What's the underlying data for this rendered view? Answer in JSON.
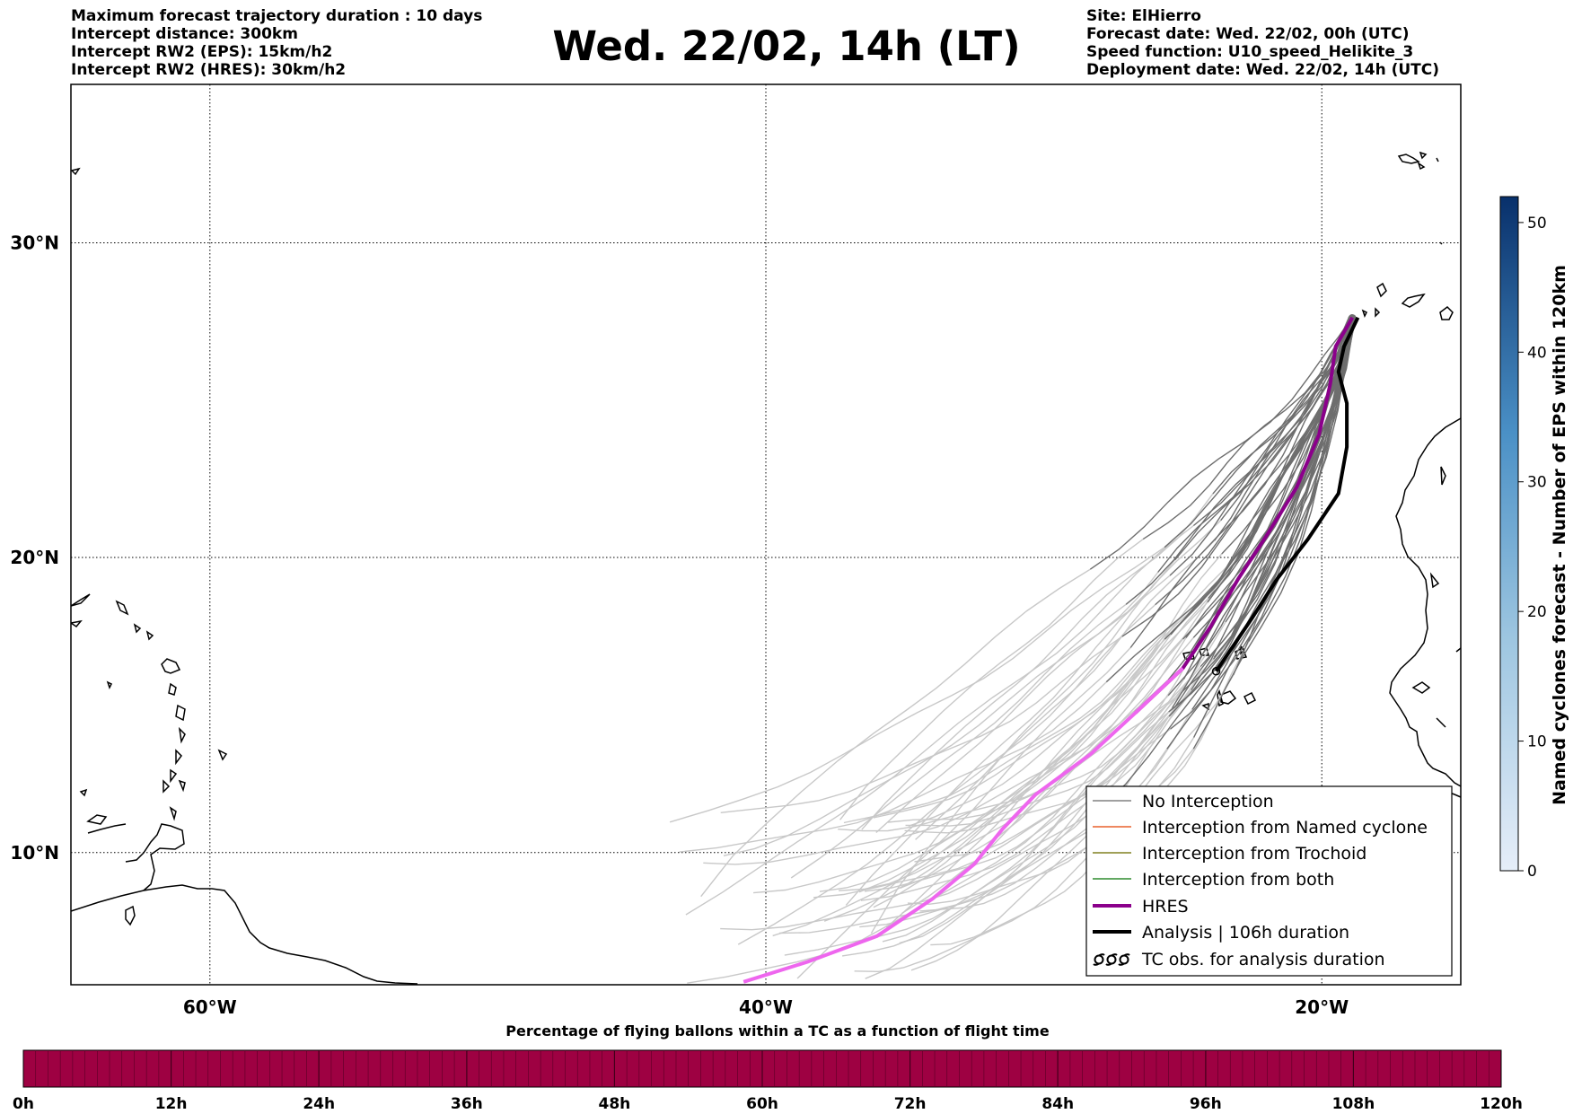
{
  "title": "Wed. 22/02, 14h (LT)",
  "header_left": [
    "Maximum forecast trajectory duration : 10 days",
    "Intercept distance: 300km",
    "Intercept RW2 (EPS):  15km/h2",
    "Intercept RW2 (HRES): 30km/h2"
  ],
  "header_right": [
    "Site: ElHierro",
    "Forecast date: Wed. 22/02, 00h (UTC)",
    "Speed function: U10_speed_Helikite_3",
    "Deployment date: Wed. 22/02, 14h (UTC)"
  ],
  "map": {
    "lon_ticks": [
      {
        "value": -60,
        "label": "60°W"
      },
      {
        "value": -40,
        "label": "40°W"
      },
      {
        "value": -20,
        "label": "20°W"
      }
    ],
    "lat_ticks": [
      {
        "value": 10,
        "label": "10°N"
      },
      {
        "value": 20,
        "label": "20°N"
      },
      {
        "value": 30,
        "label": "30°N"
      }
    ],
    "lon_range": [
      -65,
      -15
    ],
    "lat_range": [
      5.4,
      34.7
    ],
    "grid": "dotted"
  },
  "legend": [
    {
      "label": "No Interception",
      "color": "#808080",
      "style": "thin-line"
    },
    {
      "label": "Interception from Named cyclone",
      "color": "#e8602c",
      "style": "thin-line"
    },
    {
      "label": "Interception from Trochoid",
      "color": "#808020",
      "style": "thin-line"
    },
    {
      "label": "Interception from both",
      "color": "#2e8b2e",
      "style": "thin-line"
    },
    {
      "label": "HRES",
      "color": "#8b008b",
      "style": "thick-line"
    },
    {
      "label": "Analysis | 106h duration",
      "color": "#000000",
      "style": "thick-line"
    },
    {
      "label": "TC obs. for analysis duration",
      "color": "#000000",
      "style": "cyclone-symbols"
    }
  ],
  "colorbar_right": {
    "label": "Named cyclones forecast - Number of EPS within 120km",
    "ticks": [
      "0",
      "10",
      "20",
      "30",
      "40",
      "50"
    ],
    "min": 0,
    "max": 52,
    "color_low": "#e6eef9",
    "color_high": "#08306b"
  },
  "colorbar_bottom": {
    "label": "Percentage of flying ballons within a TC as a function of flight time",
    "ticks": [
      "0h",
      "12h",
      "24h",
      "36h",
      "48h",
      "60h",
      "72h",
      "84h",
      "96h",
      "108h",
      "120h"
    ],
    "fill_color": "#9e0142"
  },
  "chart_data": {
    "type": "trajectory-map",
    "site": "ElHierro",
    "origin": {
      "lon": -18.9,
      "lat": 27.7
    },
    "hres_track": [
      [
        -18.9,
        27.7
      ],
      [
        -19.5,
        26.8
      ],
      [
        -19.7,
        25.6
      ],
      [
        -20.1,
        24.0
      ],
      [
        -20.9,
        22.3
      ],
      [
        -22.0,
        20.7
      ],
      [
        -23.0,
        19.3
      ],
      [
        -24.0,
        17.7
      ],
      [
        -25.0,
        16.3
      ],
      [
        -26.7,
        14.8
      ],
      [
        -28.3,
        13.4
      ],
      [
        -30.3,
        12.0
      ],
      [
        -31.5,
        10.8
      ],
      [
        -32.5,
        9.6
      ],
      [
        -34.0,
        8.4
      ],
      [
        -36.0,
        7.1
      ],
      [
        -38.5,
        6.2
      ],
      [
        -40.8,
        5.5
      ]
    ],
    "analysis_track": [
      [
        -18.7,
        27.7
      ],
      [
        -19.2,
        26.8
      ],
      [
        -19.4,
        26.0
      ],
      [
        -19.1,
        25.0
      ],
      [
        -19.1,
        23.6
      ],
      [
        -19.4,
        22.1
      ],
      [
        -20.5,
        20.6
      ],
      [
        -21.6,
        19.3
      ],
      [
        -22.5,
        18.0
      ],
      [
        -23.8,
        16.2
      ]
    ],
    "eps_members": 51
  }
}
